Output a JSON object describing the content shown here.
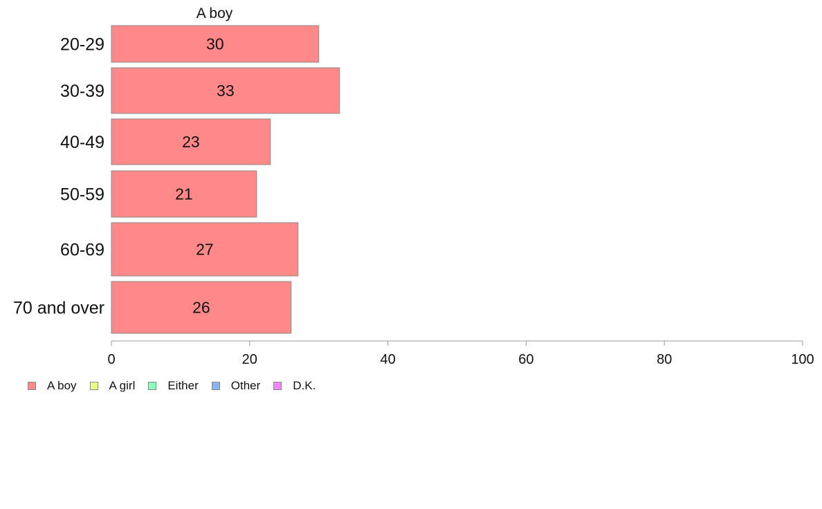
{
  "chart_data": {
    "type": "bar",
    "orientation": "horizontal",
    "title": "A boy",
    "categories": [
      "20-29",
      "30-39",
      "40-49",
      "50-59",
      "60-69",
      "70 and over"
    ],
    "series": [
      {
        "name": "A boy",
        "values": [
          30,
          33,
          23,
          21,
          27,
          26
        ]
      }
    ],
    "data_labels": [
      "30",
      "33",
      "23",
      "21",
      "27",
      "26"
    ],
    "xlim": [
      0,
      100
    ],
    "xticks": [
      "0",
      "20",
      "40",
      "60",
      "80",
      "100"
    ],
    "grid": false,
    "legend": {
      "position": "bottom-left",
      "entries": [
        {
          "label": "A boy",
          "color": "#ff8888"
        },
        {
          "label": "A girl",
          "color": "#eeff88"
        },
        {
          "label": "Either",
          "color": "#88ffbb"
        },
        {
          "label": "Other",
          "color": "#88b4f0"
        },
        {
          "label": "D.K.",
          "color": "#ee88ff"
        }
      ]
    },
    "bar_color": "#ff8888"
  }
}
